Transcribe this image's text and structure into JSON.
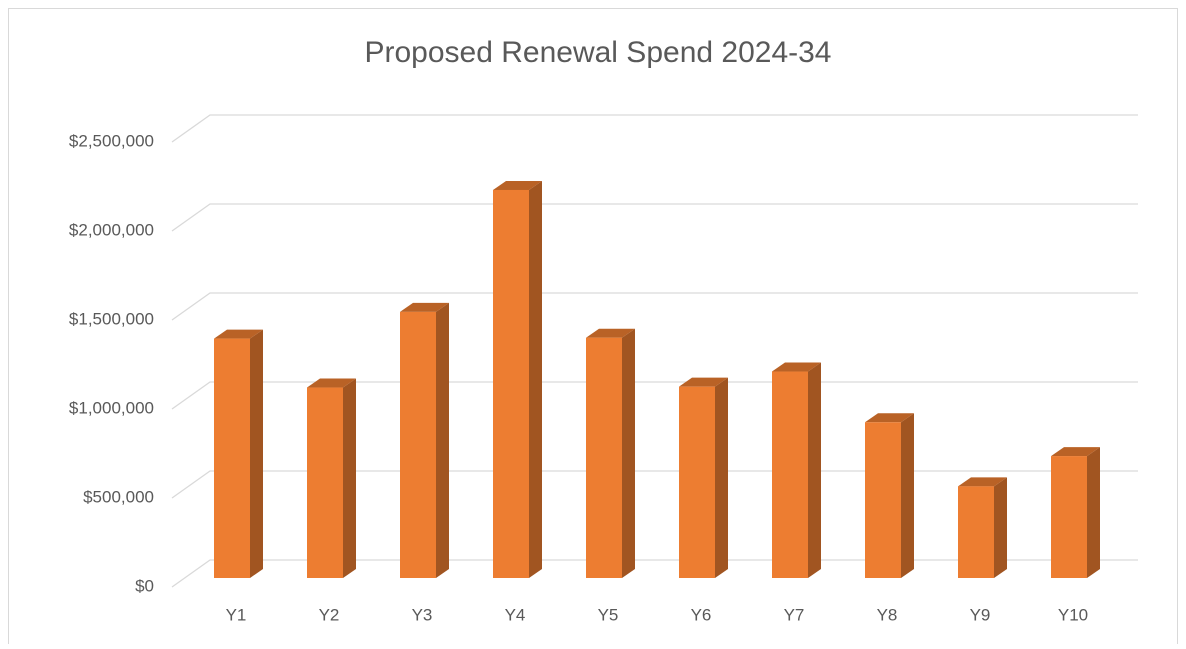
{
  "chart_data": {
    "type": "bar3d",
    "title": "Proposed Renewal Spend 2024-34",
    "categories": [
      "Y1",
      "Y2",
      "Y3",
      "Y4",
      "Y5",
      "Y6",
      "Y7",
      "Y8",
      "Y9",
      "Y10"
    ],
    "values": [
      1345000,
      1070000,
      1495000,
      2180000,
      1350000,
      1075000,
      1160000,
      875000,
      515000,
      685000
    ],
    "color": "#ed7d31",
    "ylim": [
      0,
      2500000
    ],
    "yticks": [
      {
        "value": 0,
        "label": "$0"
      },
      {
        "value": 500000,
        "label": "$500,000"
      },
      {
        "value": 1000000,
        "label": "$1,000,000"
      },
      {
        "value": 1500000,
        "label": "$1,500,000"
      },
      {
        "value": 2000000,
        "label": "$2,000,000"
      },
      {
        "value": 2500000,
        "label": "$2,500,000"
      }
    ],
    "grid": true
  }
}
